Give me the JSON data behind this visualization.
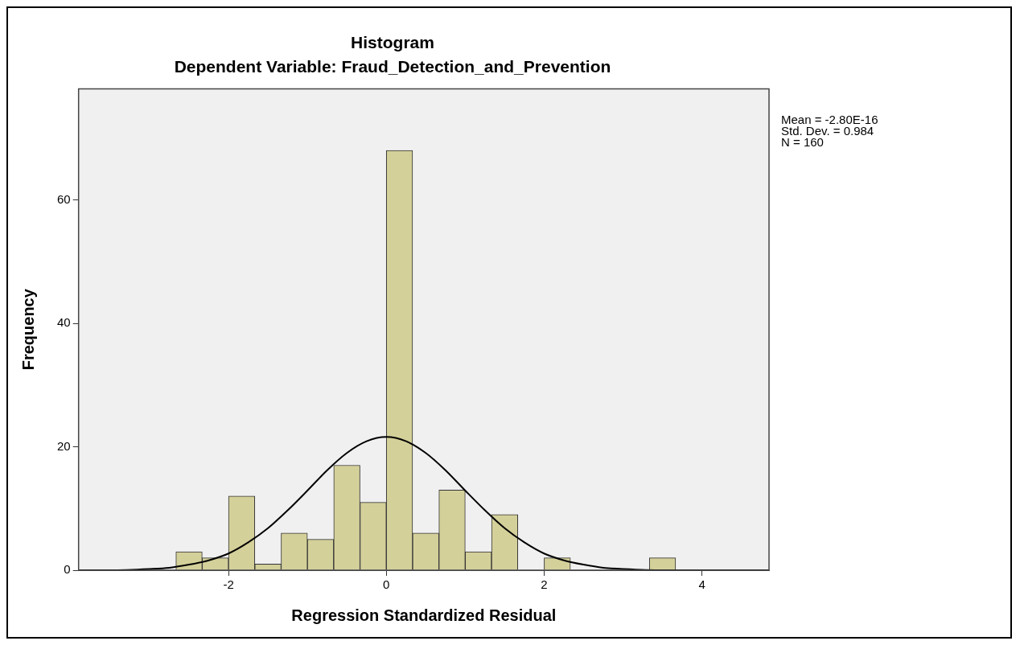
{
  "chart_data": {
    "type": "histogram",
    "title": "Histogram",
    "subtitle": "Dependent Variable: Fraud_Detection_and_Prevention",
    "xlabel": "Regression Standardized Residual",
    "ylabel": "Frequency",
    "bins": [
      -2.667,
      -2.333,
      -2,
      -1.667,
      -1.333,
      -1,
      -0.667,
      -0.333,
      0,
      0.333,
      0.667,
      1,
      1.333,
      1.667,
      2,
      2.333,
      2.667,
      3,
      3.333,
      3.667
    ],
    "values": [
      3,
      2,
      12,
      1,
      6,
      5,
      17,
      11,
      68,
      6,
      13,
      3,
      9,
      0,
      2,
      0,
      0,
      0,
      2
    ],
    "color": "#d4d09a",
    "series": [
      {
        "type": "line",
        "color": "#000000",
        "x": [
          -3.9,
          -3.5,
          -3,
          -2.75,
          -2.5,
          -2.25,
          -2,
          -1.75,
          -1.5,
          -1.25,
          -1,
          -0.75,
          -0.5,
          -0.25,
          0,
          0.25,
          0.5,
          0.75,
          1,
          1.25,
          1.5,
          1.75,
          2,
          2.25,
          2.5,
          2.75,
          3,
          3.5,
          4,
          4.85
        ],
        "values": [
          0,
          0,
          0.2,
          0.4,
          0.9,
          1.6,
          2.7,
          4.5,
          6.8,
          9.7,
          12.9,
          16.2,
          19,
          20.9,
          21.6,
          20.9,
          19,
          16.2,
          12.9,
          9.7,
          6.8,
          4.5,
          2.7,
          1.6,
          0.9,
          0.4,
          0.2,
          0,
          0,
          0
        ]
      }
    ],
    "xlim": [
      -3.9,
      4.85
    ],
    "xticks": [
      -2,
      0,
      2,
      4
    ],
    "ylim": [
      0,
      78
    ],
    "yticks": [
      0,
      20,
      40,
      60
    ],
    "grid": false,
    "legend": false,
    "marker": "none",
    "annotations": [
      "Mean = -2.80E-16",
      "Std. Dev. = 0.984",
      "N = 160"
    ]
  }
}
